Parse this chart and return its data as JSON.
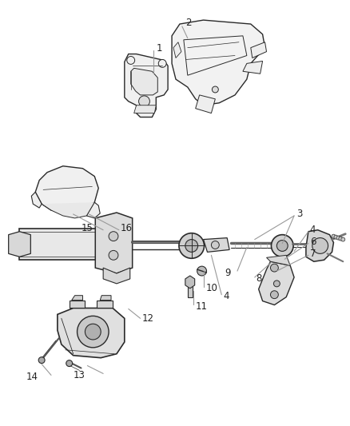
{
  "bg_color": "#ffffff",
  "line_color": "#2a2a2a",
  "callout_color": "#999999",
  "figsize": [
    4.38,
    5.33
  ],
  "dpi": 100,
  "part1_label": "1",
  "part2_label": "2",
  "parts_right": [
    "3",
    "4",
    "6",
    "7"
  ],
  "parts_mid": [
    "8",
    "9",
    "10",
    "11",
    "4"
  ],
  "parts_left": [
    "15",
    "16"
  ],
  "parts_lower": [
    "12",
    "13",
    "14"
  ]
}
